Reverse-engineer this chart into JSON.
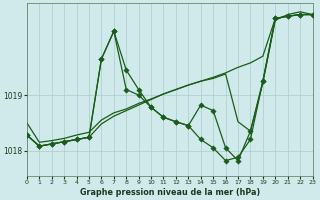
{
  "background_color": "#d0eaec",
  "grid_color": "#aacccc",
  "line_color": "#1a5c1a",
  "title": "Graphe pression niveau de la mer (hPa)",
  "xlim": [
    0,
    23
  ],
  "ylim": [
    1017.55,
    1020.65
  ],
  "yticks": [
    1018,
    1019
  ],
  "xticks": [
    0,
    1,
    2,
    3,
    4,
    5,
    6,
    7,
    8,
    9,
    10,
    11,
    12,
    13,
    14,
    15,
    16,
    17,
    18,
    19,
    20,
    21,
    22,
    23
  ],
  "s1": [
    1018.28,
    1018.08,
    1018.12,
    1018.16,
    1018.2,
    1018.24,
    1019.65,
    1020.15,
    1019.45,
    1019.1,
    1018.78,
    1018.6,
    1018.52,
    1018.45,
    1018.2,
    1018.05,
    1017.82,
    1017.88,
    1018.2,
    1019.25,
    1020.38,
    1020.42,
    1020.45,
    1020.45
  ],
  "s2": [
    1018.28,
    1018.08,
    1018.12,
    1018.16,
    1018.2,
    1018.24,
    1018.48,
    1018.62,
    1018.72,
    1018.82,
    1018.92,
    1019.02,
    1019.1,
    1019.18,
    1019.25,
    1019.32,
    1019.4,
    1019.5,
    1019.58,
    1019.7,
    1020.38,
    1020.42,
    1020.45,
    1020.45
  ],
  "s3": [
    1018.28,
    1018.08,
    1018.12,
    1018.16,
    1018.2,
    1018.24,
    1019.65,
    1020.15,
    1019.1,
    1019.0,
    1018.78,
    1018.6,
    1018.52,
    1018.45,
    1018.82,
    1018.72,
    1018.05,
    1017.82,
    1018.35,
    1019.25,
    1020.38,
    1020.42,
    1020.45,
    1020.45
  ],
  "s4": [
    1018.5,
    1018.15,
    1018.18,
    1018.22,
    1018.28,
    1018.33,
    1018.55,
    1018.68,
    1018.75,
    1018.85,
    1018.93,
    1019.02,
    1019.1,
    1019.18,
    1019.25,
    1019.3,
    1019.38,
    1018.52,
    1018.35,
    1019.22,
    1020.35,
    1020.45,
    1020.5,
    1020.45
  ]
}
